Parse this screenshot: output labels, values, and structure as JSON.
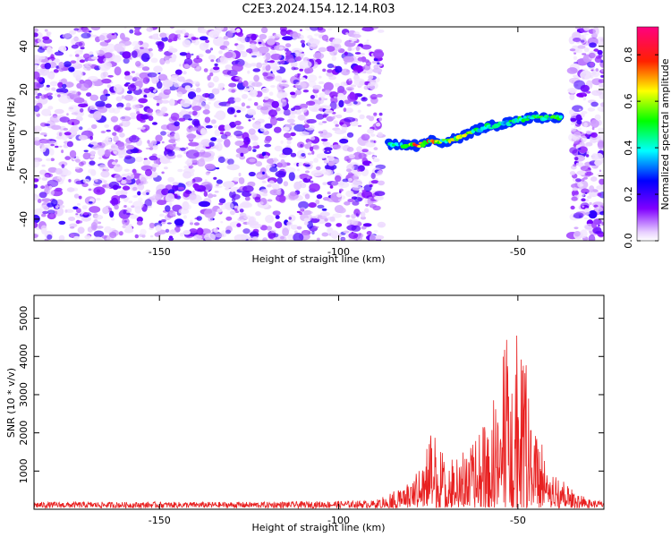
{
  "title": "C2E3.2024.154.12.14.R03",
  "chart_data": [
    {
      "type": "heatmap",
      "xlabel": "Height of straight line (km)",
      "ylabel": "Frequency (Hz)",
      "xlim": [
        -185,
        -26
      ],
      "ylim": [
        -50,
        49
      ],
      "xticks": [
        -150,
        -100,
        -50
      ],
      "yticks": [
        -40,
        -20,
        0,
        20,
        40
      ],
      "colorbar": {
        "label": "Normalized spectral amplitude",
        "range": [
          0,
          0.92
        ],
        "ticks": [
          0.0,
          0.2,
          0.4,
          0.6,
          0.8
        ],
        "colors": [
          "#ffffff",
          "#8000ff",
          "#0000ff",
          "#00ffff",
          "#00ff00",
          "#ffff00",
          "#ff0000",
          "#ff0080"
        ]
      },
      "ridge": [
        {
          "x": -86,
          "y": -5,
          "amp": 0.45
        },
        {
          "x": -82,
          "y": -6,
          "amp": 0.55
        },
        {
          "x": -78,
          "y": -6,
          "amp": 0.85
        },
        {
          "x": -74,
          "y": -4,
          "amp": 0.75
        },
        {
          "x": -70,
          "y": -4,
          "amp": 0.6
        },
        {
          "x": -66,
          "y": -2,
          "amp": 0.8
        },
        {
          "x": -62,
          "y": 1,
          "amp": 0.55
        },
        {
          "x": -58,
          "y": 3,
          "amp": 0.5
        },
        {
          "x": -54,
          "y": 4,
          "amp": 0.5
        },
        {
          "x": -50,
          "y": 6,
          "amp": 0.55
        },
        {
          "x": -46,
          "y": 7,
          "amp": 0.6
        },
        {
          "x": -42,
          "y": 7,
          "amp": 0.55
        },
        {
          "x": -38,
          "y": 7,
          "amp": 0.5
        }
      ]
    },
    {
      "type": "line",
      "xlabel": "Height of straight line (km)",
      "ylabel": "SNR (10 * v/v)",
      "xlim": [
        -185,
        -26
      ],
      "ylim": [
        0,
        5600
      ],
      "xticks": [
        -150,
        -100,
        -50
      ],
      "yticks": [
        1000,
        2000,
        3000,
        4000,
        5000
      ],
      "series": [
        {
          "color": "#e82020",
          "envelope": [
            [
              -185,
              180
            ],
            [
              -120,
              180
            ],
            [
              -90,
              220
            ],
            [
              -85,
              450
            ],
            [
              -80,
              700
            ],
            [
              -76,
              1600
            ],
            [
              -74,
              2200
            ],
            [
              -72,
              1800
            ],
            [
              -70,
              1300
            ],
            [
              -66,
              1500
            ],
            [
              -62,
              1800
            ],
            [
              -58,
              2600
            ],
            [
              -55,
              3400
            ],
            [
              -53,
              5300
            ],
            [
              -51,
              3200
            ],
            [
              -50,
              5600
            ],
            [
              -48,
              4400
            ],
            [
              -46,
              2200
            ],
            [
              -44,
              2100
            ],
            [
              -42,
              1100
            ],
            [
              -38,
              800
            ],
            [
              -34,
              450
            ],
            [
              -30,
              250
            ],
            [
              -26,
              200
            ]
          ]
        }
      ]
    }
  ]
}
